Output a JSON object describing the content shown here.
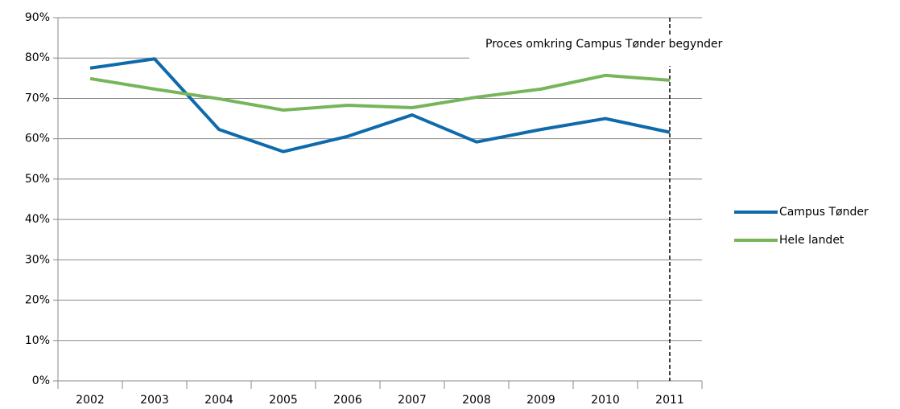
{
  "chart_data": {
    "type": "line",
    "annotation": "Proces omkring Campus Tønder begynder",
    "categories": [
      "2002",
      "2003",
      "2004",
      "2005",
      "2006",
      "2007",
      "2008",
      "2009",
      "2010",
      "2011"
    ],
    "series": [
      {
        "name": "Campus Tønder",
        "color": "#0e6aab",
        "values": [
          77.5,
          79.8,
          62.3,
          56.8,
          60.6,
          65.9,
          59.2,
          62.3,
          65.0,
          61.6
        ]
      },
      {
        "name": "Hele landet",
        "color": "#77b55a",
        "values": [
          74.9,
          72.3,
          69.9,
          67.1,
          68.3,
          67.7,
          70.3,
          72.3,
          75.7,
          74.5
        ]
      }
    ],
    "ylim": [
      0,
      90
    ],
    "yticks": [
      {
        "value": 0,
        "label": "0%"
      },
      {
        "value": 10,
        "label": "10%"
      },
      {
        "value": 20,
        "label": "20%"
      },
      {
        "value": 30,
        "label": "30%"
      },
      {
        "value": 40,
        "label": "40%"
      },
      {
        "value": 50,
        "label": "50%"
      },
      {
        "value": 60,
        "label": "60%"
      },
      {
        "value": 70,
        "label": "70%"
      },
      {
        "value": 80,
        "label": "80%"
      },
      {
        "value": 90,
        "label": "90%"
      }
    ],
    "grid": true,
    "legend": "right"
  }
}
